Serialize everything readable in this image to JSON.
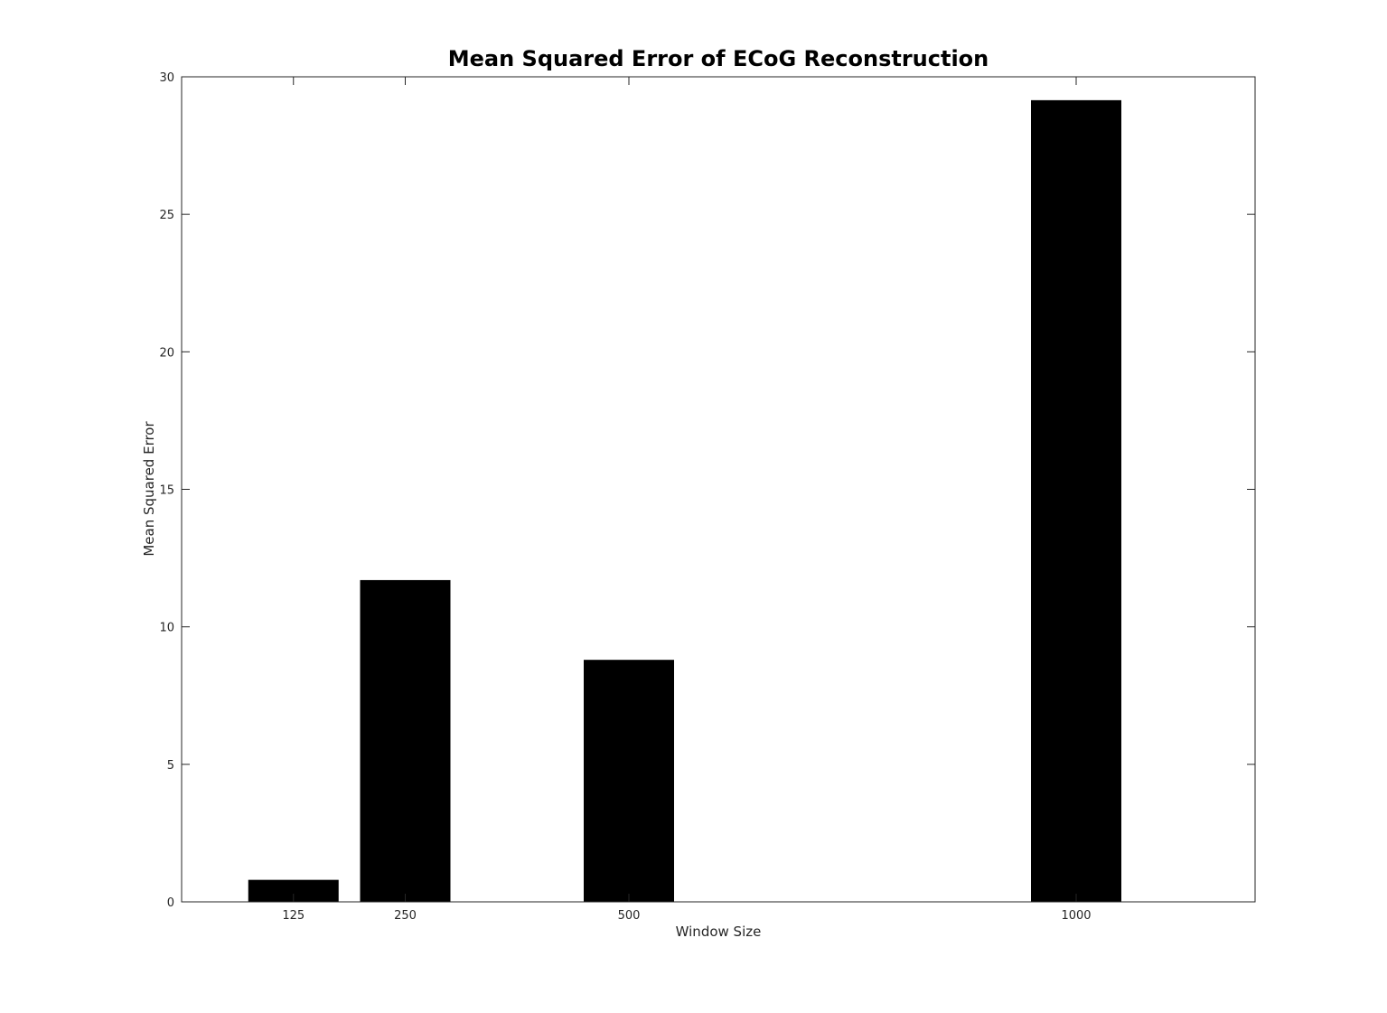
{
  "chart_data": {
    "type": "bar",
    "title": "Mean Squared Error of ECoG Reconstruction",
    "xlabel": "Window Size",
    "ylabel": "Mean Squared Error",
    "x": [
      125,
      250,
      500,
      1000
    ],
    "x_tick_labels": [
      "125",
      "250",
      "500",
      "1000"
    ],
    "values": [
      0.8,
      11.7,
      8.8,
      29.15
    ],
    "xlim": [
      0,
      1200
    ],
    "ylim": [
      0,
      30
    ],
    "y_ticks": [
      0,
      5,
      10,
      15,
      20,
      25,
      30
    ],
    "y_tick_labels": [
      "0",
      "5",
      "10",
      "15",
      "20",
      "25",
      "30"
    ],
    "bar_color": "#000000",
    "grid": false,
    "box": true
  }
}
